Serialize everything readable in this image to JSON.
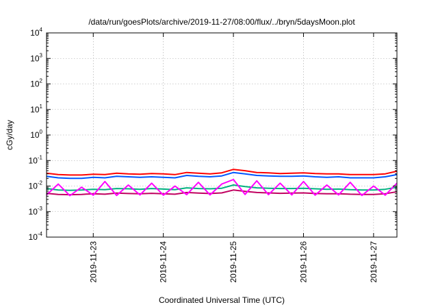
{
  "chart_data": {
    "type": "line",
    "title": "/data/run/goesPlots/archive/2019-11-27/08:00/flux/../bryn/5daysMoon.plot",
    "xlabel": "Coordinated Universal Time (UTC)",
    "ylabel": "cGy/day",
    "y_scale": "log",
    "ylim": [
      0.0001,
      10000
    ],
    "xlim": [
      "2019-11-22 08:00",
      "2019-11-27 08:00"
    ],
    "x_ticks": [
      "2019-11-23",
      "2019-11-24",
      "2019-11-25",
      "2019-11-26",
      "2019-11-27"
    ],
    "y_ticks": [
      {
        "base": "10",
        "exp": "4",
        "value": 10000
      },
      {
        "base": "10",
        "exp": "3",
        "value": 1000
      },
      {
        "base": "10",
        "exp": "2",
        "value": 100
      },
      {
        "base": "10",
        "exp": "1",
        "value": 10
      },
      {
        "base": "10",
        "exp": "0",
        "value": 1
      },
      {
        "base": "10",
        "exp": "-1",
        "value": 0.1
      },
      {
        "base": "10",
        "exp": "-2",
        "value": 0.01
      },
      {
        "base": "10",
        "exp": "-3",
        "value": 0.001
      },
      {
        "base": "10",
        "exp": "-4",
        "value": 0.0001
      }
    ],
    "grid": true,
    "series": [
      {
        "color": "#ff0000",
        "x": [
          "2019-11-22 08:00",
          "2019-11-22 12:00",
          "2019-11-22 16:00",
          "2019-11-22 20:00",
          "2019-11-23 00:00",
          "2019-11-23 04:00",
          "2019-11-23 08:00",
          "2019-11-23 12:00",
          "2019-11-23 16:00",
          "2019-11-23 20:00",
          "2019-11-24 00:00",
          "2019-11-24 04:00",
          "2019-11-24 08:00",
          "2019-11-24 12:00",
          "2019-11-24 16:00",
          "2019-11-24 20:00",
          "2019-11-25 00:00",
          "2019-11-25 04:00",
          "2019-11-25 08:00",
          "2019-11-25 12:00",
          "2019-11-25 16:00",
          "2019-11-25 20:00",
          "2019-11-26 00:00",
          "2019-11-26 04:00",
          "2019-11-26 08:00",
          "2019-11-26 12:00",
          "2019-11-26 16:00",
          "2019-11-26 20:00",
          "2019-11-27 00:00",
          "2019-11-27 04:00",
          "2019-11-27 08:00"
        ],
        "y": [
          0.032,
          0.028,
          0.027,
          0.027,
          0.029,
          0.028,
          0.032,
          0.03,
          0.029,
          0.031,
          0.03,
          0.028,
          0.034,
          0.032,
          0.03,
          0.033,
          0.045,
          0.04,
          0.034,
          0.033,
          0.031,
          0.032,
          0.033,
          0.031,
          0.03,
          0.03,
          0.028,
          0.028,
          0.028,
          0.03,
          0.038
        ]
      },
      {
        "color": "#0055ff",
        "x": [
          "2019-11-22 08:00",
          "2019-11-22 12:00",
          "2019-11-22 16:00",
          "2019-11-22 20:00",
          "2019-11-23 00:00",
          "2019-11-23 04:00",
          "2019-11-23 08:00",
          "2019-11-23 12:00",
          "2019-11-23 16:00",
          "2019-11-23 20:00",
          "2019-11-24 00:00",
          "2019-11-24 04:00",
          "2019-11-24 08:00",
          "2019-11-24 12:00",
          "2019-11-24 16:00",
          "2019-11-24 20:00",
          "2019-11-25 00:00",
          "2019-11-25 04:00",
          "2019-11-25 08:00",
          "2019-11-25 12:00",
          "2019-11-25 16:00",
          "2019-11-25 20:00",
          "2019-11-26 00:00",
          "2019-11-26 04:00",
          "2019-11-26 08:00",
          "2019-11-26 12:00",
          "2019-11-26 16:00",
          "2019-11-26 20:00",
          "2019-11-27 00:00",
          "2019-11-27 04:00",
          "2019-11-27 08:00"
        ],
        "y": [
          0.024,
          0.021,
          0.02,
          0.02,
          0.022,
          0.021,
          0.024,
          0.023,
          0.022,
          0.023,
          0.022,
          0.021,
          0.026,
          0.024,
          0.023,
          0.025,
          0.034,
          0.03,
          0.026,
          0.025,
          0.024,
          0.024,
          0.025,
          0.023,
          0.022,
          0.023,
          0.021,
          0.021,
          0.021,
          0.023,
          0.028
        ]
      },
      {
        "color": "#00b080",
        "x": [
          "2019-11-22 08:00",
          "2019-11-22 12:00",
          "2019-11-22 16:00",
          "2019-11-22 20:00",
          "2019-11-23 00:00",
          "2019-11-23 04:00",
          "2019-11-23 08:00",
          "2019-11-23 12:00",
          "2019-11-23 16:00",
          "2019-11-23 20:00",
          "2019-11-24 00:00",
          "2019-11-24 04:00",
          "2019-11-24 08:00",
          "2019-11-24 12:00",
          "2019-11-24 16:00",
          "2019-11-24 20:00",
          "2019-11-25 00:00",
          "2019-11-25 04:00",
          "2019-11-25 08:00",
          "2019-11-25 12:00",
          "2019-11-25 16:00",
          "2019-11-25 20:00",
          "2019-11-26 00:00",
          "2019-11-26 04:00",
          "2019-11-26 08:00",
          "2019-11-26 12:00",
          "2019-11-26 16:00",
          "2019-11-26 20:00",
          "2019-11-27 00:00",
          "2019-11-27 04:00",
          "2019-11-27 08:00"
        ],
        "y": [
          0.008,
          0.007,
          0.0068,
          0.007,
          0.0075,
          0.0072,
          0.008,
          0.0078,
          0.0075,
          0.008,
          0.0076,
          0.0072,
          0.0085,
          0.008,
          0.0078,
          0.0082,
          0.011,
          0.0095,
          0.0085,
          0.0082,
          0.008,
          0.008,
          0.0082,
          0.0078,
          0.0075,
          0.0076,
          0.0072,
          0.007,
          0.007,
          0.0075,
          0.009
        ]
      },
      {
        "color": "#c00060",
        "x": [
          "2019-11-22 08:00",
          "2019-11-22 12:00",
          "2019-11-22 16:00",
          "2019-11-22 20:00",
          "2019-11-23 00:00",
          "2019-11-23 04:00",
          "2019-11-23 08:00",
          "2019-11-23 12:00",
          "2019-11-23 16:00",
          "2019-11-23 20:00",
          "2019-11-24 00:00",
          "2019-11-24 04:00",
          "2019-11-24 08:00",
          "2019-11-24 12:00",
          "2019-11-24 16:00",
          "2019-11-24 20:00",
          "2019-11-25 00:00",
          "2019-11-25 04:00",
          "2019-11-25 08:00",
          "2019-11-25 12:00",
          "2019-11-25 16:00",
          "2019-11-25 20:00",
          "2019-11-26 00:00",
          "2019-11-26 04:00",
          "2019-11-26 08:00",
          "2019-11-26 12:00",
          "2019-11-26 16:00",
          "2019-11-26 20:00",
          "2019-11-27 00:00",
          "2019-11-27 04:00",
          "2019-11-27 08:00"
        ],
        "y": [
          0.0052,
          0.0047,
          0.0046,
          0.0047,
          0.005,
          0.0048,
          0.0053,
          0.0051,
          0.005,
          0.0052,
          0.005,
          0.0048,
          0.0056,
          0.0053,
          0.0051,
          0.0054,
          0.007,
          0.0062,
          0.0056,
          0.0054,
          0.0052,
          0.0053,
          0.0054,
          0.0051,
          0.005,
          0.005,
          0.0048,
          0.0047,
          0.0047,
          0.005,
          0.006
        ]
      },
      {
        "color": "#ff00ff",
        "x": [
          "2019-11-22 08:00",
          "2019-11-22 12:00",
          "2019-11-22 16:00",
          "2019-11-22 20:00",
          "2019-11-23 00:00",
          "2019-11-23 04:00",
          "2019-11-23 08:00",
          "2019-11-23 12:00",
          "2019-11-23 16:00",
          "2019-11-23 20:00",
          "2019-11-24 00:00",
          "2019-11-24 04:00",
          "2019-11-24 08:00",
          "2019-11-24 12:00",
          "2019-11-24 16:00",
          "2019-11-24 20:00",
          "2019-11-25 00:00",
          "2019-11-25 04:00",
          "2019-11-25 08:00",
          "2019-11-25 12:00",
          "2019-11-25 16:00",
          "2019-11-25 20:00",
          "2019-11-26 00:00",
          "2019-11-26 04:00",
          "2019-11-26 08:00",
          "2019-11-26 12:00",
          "2019-11-26 16:00",
          "2019-11-26 20:00",
          "2019-11-27 00:00",
          "2019-11-27 04:00",
          "2019-11-27 08:00"
        ],
        "y": [
          0.0045,
          0.012,
          0.0042,
          0.009,
          0.0044,
          0.015,
          0.0043,
          0.011,
          0.0045,
          0.013,
          0.0044,
          0.01,
          0.0046,
          0.014,
          0.0045,
          0.012,
          0.018,
          0.0047,
          0.016,
          0.0046,
          0.013,
          0.0045,
          0.015,
          0.0044,
          0.011,
          0.0045,
          0.014,
          0.0043,
          0.01,
          0.0044,
          0.013
        ]
      }
    ]
  }
}
